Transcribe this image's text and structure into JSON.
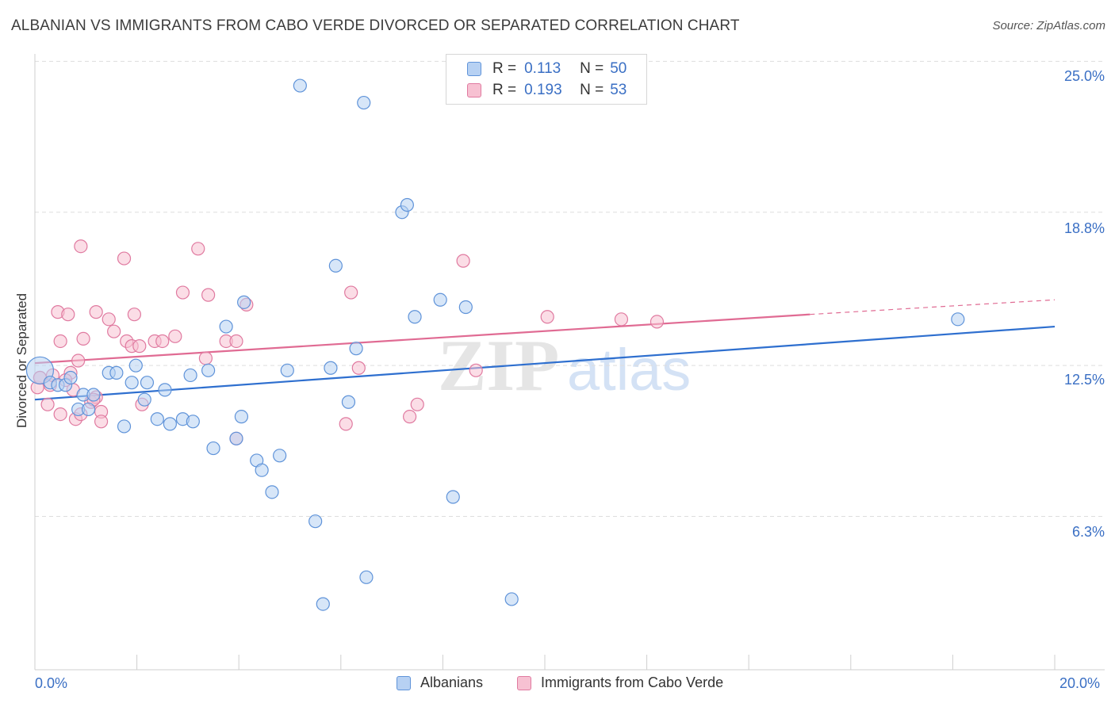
{
  "title": "ALBANIAN VS IMMIGRANTS FROM CABO VERDE DIVORCED OR SEPARATED CORRELATION CHART",
  "source": "Source: ZipAtlas.com",
  "watermark": {
    "zip": "ZIP",
    "atlas": "atlas"
  },
  "legend": {
    "r_label": "R =",
    "n_label": "N =",
    "rows": [
      {
        "r": "0.113",
        "n": "50"
      },
      {
        "r": "0.193",
        "n": "53"
      }
    ]
  },
  "bottom_legend": [
    "Albanians",
    "Immigrants from Cabo Verde"
  ],
  "colors": {
    "blue_fill": "#b7d1f3",
    "blue_stroke": "#5f93d9",
    "blue_line": "#2e6fcf",
    "pink_fill": "#f7c1d2",
    "pink_stroke": "#e07aa0",
    "pink_line": "#e06b93",
    "value_text": "#3a6fc4",
    "grid": "#dddddd"
  },
  "chart_data": {
    "type": "scatter",
    "xlabel": "",
    "ylabel": "Divorced or Separated",
    "xlim": [
      0,
      20
    ],
    "ylim": [
      0,
      25.5
    ],
    "x_tick_labels": [
      "0.0%",
      "20.0%"
    ],
    "y_ticks": [
      6.3,
      12.5,
      18.8,
      25.0
    ],
    "y_tick_labels": [
      "6.3%",
      "12.5%",
      "18.8%",
      "25.0%"
    ],
    "grid": true,
    "legend_position": "top-center",
    "series": [
      {
        "name": "Albanians",
        "r": 0.113,
        "n": 50,
        "trend": {
          "x": [
            0,
            20
          ],
          "y": [
            11.1,
            14.1
          ]
        },
        "points": [
          [
            0.1,
            12.3
          ],
          [
            0.3,
            11.8
          ],
          [
            0.45,
            11.7
          ],
          [
            0.6,
            11.7
          ],
          [
            0.7,
            12.0
          ],
          [
            0.85,
            10.7
          ],
          [
            0.95,
            11.3
          ],
          [
            1.15,
            11.3
          ],
          [
            1.05,
            10.7
          ],
          [
            1.45,
            12.2
          ],
          [
            1.6,
            12.2
          ],
          [
            1.9,
            11.8
          ],
          [
            1.98,
            12.5
          ],
          [
            1.75,
            10.0
          ],
          [
            2.15,
            11.1
          ],
          [
            2.2,
            11.8
          ],
          [
            2.4,
            10.3
          ],
          [
            2.55,
            11.5
          ],
          [
            2.65,
            10.1
          ],
          [
            2.9,
            10.3
          ],
          [
            3.1,
            10.2
          ],
          [
            3.05,
            12.1
          ],
          [
            3.4,
            12.3
          ],
          [
            3.5,
            9.1
          ],
          [
            3.75,
            14.1
          ],
          [
            3.95,
            9.5
          ],
          [
            4.05,
            10.4
          ],
          [
            4.1,
            15.1
          ],
          [
            4.35,
            8.6
          ],
          [
            4.45,
            8.2
          ],
          [
            4.65,
            7.3
          ],
          [
            4.8,
            8.8
          ],
          [
            4.95,
            12.3
          ],
          [
            5.2,
            24.0
          ],
          [
            5.5,
            6.1
          ],
          [
            5.65,
            2.7
          ],
          [
            5.8,
            12.4
          ],
          [
            5.9,
            16.6
          ],
          [
            6.3,
            13.2
          ],
          [
            6.15,
            11.0
          ],
          [
            6.5,
            3.8
          ],
          [
            6.45,
            23.3
          ],
          [
            7.2,
            18.8
          ],
          [
            7.3,
            19.1
          ],
          [
            7.45,
            14.5
          ],
          [
            7.95,
            15.2
          ],
          [
            8.2,
            7.1
          ],
          [
            8.45,
            14.9
          ],
          [
            9.35,
            2.9
          ],
          [
            18.1,
            14.4
          ]
        ]
      },
      {
        "name": "Immigrants from Cabo Verde",
        "r": 0.193,
        "n": 53,
        "trend": {
          "x": [
            0,
            15.2
          ],
          "y": [
            12.6,
            14.6
          ],
          "dash_to": {
            "x": 20,
            "y": 15.2
          }
        },
        "points": [
          [
            0.05,
            11.6
          ],
          [
            0.1,
            12.0
          ],
          [
            0.25,
            10.9
          ],
          [
            0.3,
            11.7
          ],
          [
            0.35,
            12.1
          ],
          [
            0.45,
            14.7
          ],
          [
            0.5,
            13.5
          ],
          [
            0.5,
            10.5
          ],
          [
            0.65,
            14.6
          ],
          [
            0.7,
            12.2
          ],
          [
            0.75,
            11.5
          ],
          [
            0.8,
            10.3
          ],
          [
            0.85,
            12.7
          ],
          [
            0.9,
            10.5
          ],
          [
            0.9,
            17.4
          ],
          [
            0.95,
            13.6
          ],
          [
            1.1,
            11.0
          ],
          [
            1.2,
            11.2
          ],
          [
            1.2,
            14.7
          ],
          [
            1.3,
            10.6
          ],
          [
            1.3,
            10.2
          ],
          [
            1.45,
            14.4
          ],
          [
            1.55,
            13.9
          ],
          [
            1.75,
            16.9
          ],
          [
            1.8,
            13.5
          ],
          [
            1.9,
            13.3
          ],
          [
            1.95,
            14.6
          ],
          [
            2.05,
            13.3
          ],
          [
            2.1,
            10.9
          ],
          [
            2.35,
            13.5
          ],
          [
            2.5,
            13.5
          ],
          [
            2.75,
            13.7
          ],
          [
            2.9,
            15.5
          ],
          [
            3.2,
            17.3
          ],
          [
            3.35,
            12.8
          ],
          [
            3.4,
            15.4
          ],
          [
            3.75,
            13.5
          ],
          [
            3.95,
            13.5
          ],
          [
            3.95,
            9.5
          ],
          [
            4.15,
            15.0
          ],
          [
            6.1,
            10.1
          ],
          [
            6.2,
            15.5
          ],
          [
            6.35,
            12.4
          ],
          [
            7.35,
            10.4
          ],
          [
            7.5,
            10.9
          ],
          [
            8.4,
            16.8
          ],
          [
            8.65,
            12.3
          ],
          [
            10.05,
            14.5
          ],
          [
            11.5,
            14.4
          ],
          [
            12.2,
            14.3
          ],
          [
            0.1,
            12.0
          ],
          [
            0.6,
            11.9
          ],
          [
            1.15,
            11.1
          ]
        ]
      }
    ]
  }
}
